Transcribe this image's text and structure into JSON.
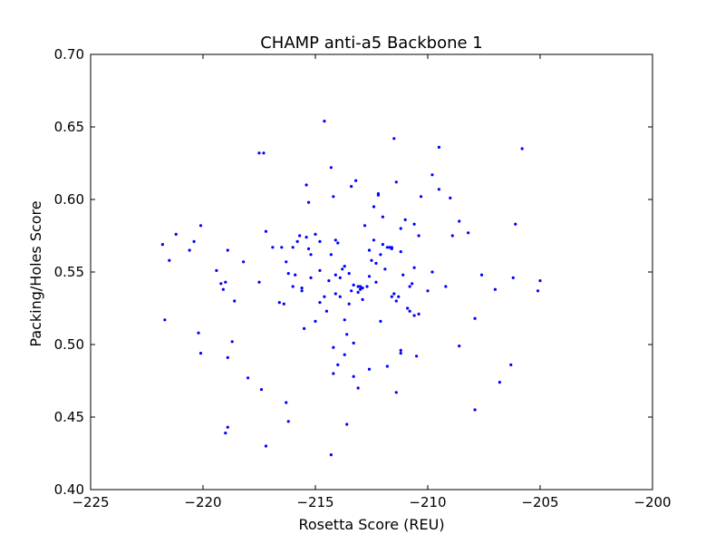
{
  "chart_data": {
    "type": "scatter",
    "title": "CHAMP anti-a5 Backbone 1",
    "xlabel": "Rosetta Score (REU)",
    "ylabel": "Packing/Holes Score",
    "xlim": [
      -225,
      -200
    ],
    "ylim": [
      0.4,
      0.7
    ],
    "xticks": [
      -225,
      -220,
      -215,
      -210,
      -205,
      -200
    ],
    "yticks": [
      0.4,
      0.45,
      0.5,
      0.55,
      0.6,
      0.65,
      0.7
    ],
    "xtick_labels": [
      "−225",
      "−220",
      "−215",
      "−210",
      "−205",
      "−200"
    ],
    "ytick_labels": [
      "0.40",
      "0.45",
      "0.50",
      "0.55",
      "0.60",
      "0.65",
      "0.70"
    ],
    "grid": false,
    "marker_color": "#0000ff",
    "series": [
      {
        "x": [
          -221.8,
          -221.5,
          -221.2,
          -220.6,
          -220.4,
          -220.1,
          -221.7,
          -220.2,
          -220.1,
          -219.4,
          -219.1,
          -219.0,
          -218.9,
          -218.6,
          -218.7,
          -218.9,
          -219.2,
          -218.2,
          -218.0,
          -217.5,
          -217.4,
          -217.3,
          -217.2,
          -216.9,
          -216.5,
          -216.3,
          -216.2,
          -216.0,
          -215.8,
          -215.7,
          -215.6,
          -215.4,
          -215.3,
          -215.2,
          -215.0,
          -214.8,
          -214.6,
          -214.3,
          -214.1,
          -214.0,
          -213.9,
          -213.7,
          -213.5,
          -213.3,
          -213.1,
          -213.0,
          -212.8,
          -212.6,
          -212.4,
          -212.2,
          -212.0,
          -211.8,
          -211.6,
          -211.4,
          -211.2,
          -211.0,
          -210.8,
          -210.6,
          -210.4,
          -210.0,
          -209.8,
          -209.5,
          -209.2,
          -208.9,
          -208.6,
          -208.2,
          -207.9,
          -207.6,
          -207.0,
          -206.2,
          -206.1,
          -205.0,
          -205.1,
          -214.6,
          -211.5,
          -217.5,
          -214.3,
          -209.5,
          -205.8,
          -208.6,
          -209.8,
          -211.2,
          -210.5,
          -216.4,
          -216.6,
          -216.0,
          -215.6,
          -215.2,
          -214.8,
          -214.1,
          -213.8,
          -213.4,
          -213.0,
          -212.6,
          -212.3,
          -212.0,
          -211.7,
          -211.3,
          -210.9,
          -210.6,
          -215.9,
          -215.5,
          -215.0,
          -214.5,
          -214.1,
          -213.7,
          -213.3,
          -212.9,
          -212.5,
          -212.1,
          -211.6,
          -211.2,
          -210.8,
          -210.4,
          -214.8,
          -214.4,
          -213.9,
          -213.5,
          -213.1,
          -212.7,
          -212.3,
          -211.9,
          -211.5,
          -211.1,
          -210.7,
          -214.2,
          -214.0,
          -213.7,
          -213.3,
          -213.1,
          -212.6,
          -211.8,
          -211.4,
          -211.2,
          -210.6,
          -214.2,
          -213.6,
          -212.9,
          -212.1,
          -211.4,
          -213.6,
          -214.3,
          -216.2,
          -216.3,
          -217.2,
          -218.9,
          -219.0,
          -207.9,
          -206.8,
          -206.3,
          -215.3,
          -215.4,
          -214.2,
          -213.4,
          -213.2,
          -212.4,
          -212.2,
          -211.6,
          -210.3,
          -209.0
        ],
        "y": [
          0.569,
          0.558,
          0.576,
          0.565,
          0.571,
          0.582,
          0.517,
          0.508,
          0.494,
          0.551,
          0.538,
          0.543,
          0.565,
          0.53,
          0.502,
          0.491,
          0.542,
          0.557,
          0.477,
          0.543,
          0.469,
          0.632,
          0.578,
          0.567,
          0.567,
          0.557,
          0.549,
          0.567,
          0.571,
          0.575,
          0.539,
          0.574,
          0.566,
          0.562,
          0.576,
          0.571,
          0.533,
          0.562,
          0.572,
          0.57,
          0.546,
          0.554,
          0.549,
          0.541,
          0.54,
          0.538,
          0.582,
          0.565,
          0.572,
          0.604,
          0.588,
          0.567,
          0.567,
          0.612,
          0.58,
          0.586,
          0.54,
          0.583,
          0.575,
          0.537,
          0.55,
          0.607,
          0.54,
          0.575,
          0.585,
          0.577,
          0.518,
          0.548,
          0.538,
          0.546,
          0.583,
          0.544,
          0.537,
          0.654,
          0.642,
          0.632,
          0.622,
          0.636,
          0.635,
          0.499,
          0.617,
          0.496,
          0.492,
          0.528,
          0.529,
          0.54,
          0.537,
          0.546,
          0.551,
          0.548,
          0.552,
          0.537,
          0.54,
          0.547,
          0.556,
          0.569,
          0.567,
          0.533,
          0.525,
          0.52,
          0.548,
          0.511,
          0.516,
          0.523,
          0.535,
          0.517,
          0.501,
          0.539,
          0.558,
          0.562,
          0.533,
          0.564,
          0.523,
          0.521,
          0.529,
          0.544,
          0.533,
          0.528,
          0.536,
          0.54,
          0.543,
          0.552,
          0.535,
          0.548,
          0.542,
          0.498,
          0.486,
          0.493,
          0.478,
          0.47,
          0.483,
          0.485,
          0.467,
          0.494,
          0.553,
          0.48,
          0.507,
          0.531,
          0.516,
          0.53,
          0.445,
          0.424,
          0.447,
          0.46,
          0.43,
          0.443,
          0.439,
          0.455,
          0.474,
          0.486,
          0.598,
          0.61,
          0.602,
          0.609,
          0.613,
          0.595,
          0.603,
          0.566,
          0.602,
          0.601
        ]
      }
    ]
  }
}
